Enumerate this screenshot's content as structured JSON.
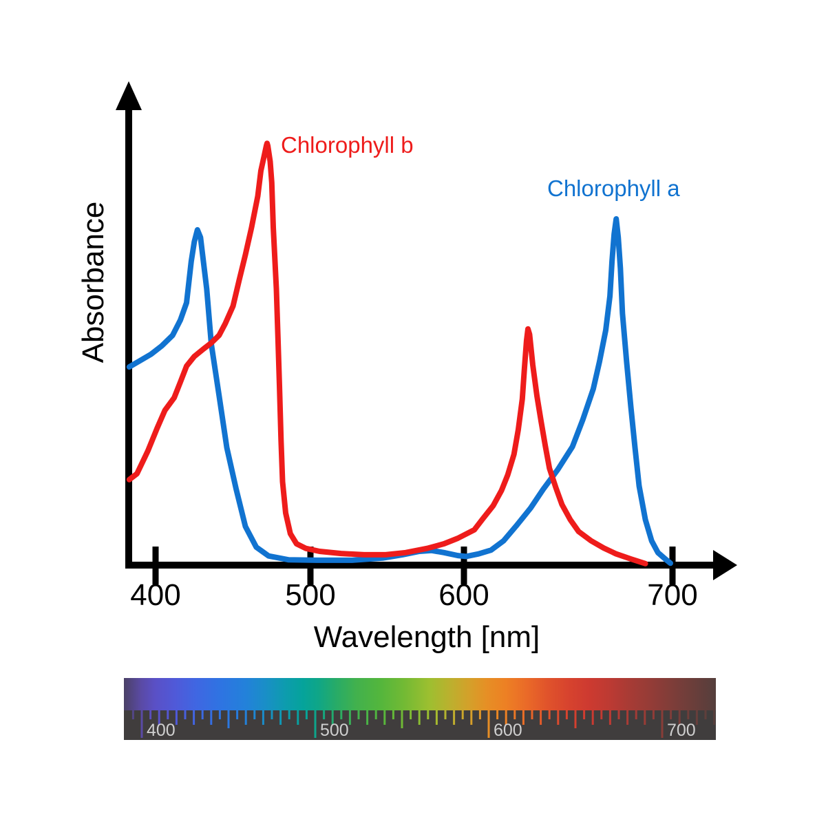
{
  "figure": {
    "y_axis_label": "Absorbance",
    "x_axis_label": "Wavelength [nm]"
  },
  "colors": {
    "chlorophyll_a": "#1173d0",
    "chlorophyll_b": "#ee1c1b",
    "axis": "#000000",
    "bar_background": "#403d3d",
    "bar_label": "#cfcfcf"
  },
  "chart_data": {
    "type": "line",
    "title": "",
    "xlabel": "Wavelength [nm]",
    "ylabel": "Absorbance",
    "x_ticks_nm": [
      400,
      500,
      600,
      700
    ],
    "x_tick_labels": [
      "400",
      "500",
      "600",
      "700"
    ],
    "x_range_nm": [
      383,
      731
    ],
    "y_range": [
      0,
      1
    ],
    "grid": false,
    "legend": "inline-labels",
    "series": [
      {
        "name": "Chlorophyll b",
        "label": "Chlorophyll b",
        "color_key": "chlorophyll_b",
        "peaks_nm": [
          472,
          631
        ],
        "points": [
          [
            383,
            0.201
          ],
          [
            388,
            0.215
          ],
          [
            395,
            0.269
          ],
          [
            401,
            0.323
          ],
          [
            406,
            0.365
          ],
          [
            412,
            0.395
          ],
          [
            416,
            0.432
          ],
          [
            420,
            0.47
          ],
          [
            425,
            0.493
          ],
          [
            431,
            0.511
          ],
          [
            436,
            0.525
          ],
          [
            441,
            0.543
          ],
          [
            445,
            0.571
          ],
          [
            450,
            0.612
          ],
          [
            454,
            0.674
          ],
          [
            458,
            0.734
          ],
          [
            462,
            0.799
          ],
          [
            466,
            0.873
          ],
          [
            468,
            0.933
          ],
          [
            470,
            0.966
          ],
          [
            471.5,
            0.992
          ],
          [
            472,
            0.998
          ],
          [
            472.5,
            0.992
          ],
          [
            474,
            0.955
          ],
          [
            475,
            0.905
          ],
          [
            476,
            0.799
          ],
          [
            478,
            0.653
          ],
          [
            479,
            0.538
          ],
          [
            480,
            0.424
          ],
          [
            481,
            0.294
          ],
          [
            482,
            0.196
          ],
          [
            484,
            0.122
          ],
          [
            487,
            0.073
          ],
          [
            491,
            0.049
          ],
          [
            497,
            0.038
          ],
          [
            506,
            0.031
          ],
          [
            520,
            0.026
          ],
          [
            535,
            0.023
          ],
          [
            549,
            0.023
          ],
          [
            562,
            0.028
          ],
          [
            576,
            0.038
          ],
          [
            587,
            0.049
          ],
          [
            596,
            0.062
          ],
          [
            605,
            0.082
          ],
          [
            609,
            0.108
          ],
          [
            614,
            0.139
          ],
          [
            618,
            0.175
          ],
          [
            621,
            0.212
          ],
          [
            624,
            0.261
          ],
          [
            626,
            0.318
          ],
          [
            628,
            0.392
          ],
          [
            629,
            0.465
          ],
          [
            630,
            0.53
          ],
          [
            630.7,
            0.558
          ],
          [
            631.5,
            0.545
          ],
          [
            633,
            0.473
          ],
          [
            635,
            0.4
          ],
          [
            637,
            0.339
          ],
          [
            639,
            0.281
          ],
          [
            641,
            0.228
          ],
          [
            644,
            0.183
          ],
          [
            647,
            0.142
          ],
          [
            651,
            0.106
          ],
          [
            655,
            0.078
          ],
          [
            661,
            0.056
          ],
          [
            667,
            0.039
          ],
          [
            673,
            0.025
          ],
          [
            680,
            0.013
          ],
          [
            687,
            0.002
          ]
        ]
      },
      {
        "name": "Chlorophyll a",
        "label": "Chlorophyll a",
        "color_key": "chlorophyll_a",
        "peaks_nm": [
          427,
          673
        ],
        "points": [
          [
            383,
            0.468
          ],
          [
            390,
            0.483
          ],
          [
            397,
            0.498
          ],
          [
            404,
            0.518
          ],
          [
            411,
            0.543
          ],
          [
            416,
            0.579
          ],
          [
            420,
            0.62
          ],
          [
            423,
            0.718
          ],
          [
            425,
            0.765
          ],
          [
            427,
            0.793
          ],
          [
            429,
            0.775
          ],
          [
            430,
            0.745
          ],
          [
            433,
            0.653
          ],
          [
            436,
            0.522
          ],
          [
            441,
            0.4
          ],
          [
            446,
            0.277
          ],
          [
            452,
            0.179
          ],
          [
            458,
            0.09
          ],
          [
            465,
            0.041
          ],
          [
            473,
            0.02
          ],
          [
            486,
            0.011
          ],
          [
            504,
            0.01
          ],
          [
            527,
            0.01
          ],
          [
            547,
            0.015
          ],
          [
            560,
            0.023
          ],
          [
            571,
            0.031
          ],
          [
            579,
            0.033
          ],
          [
            587,
            0.028
          ],
          [
            596,
            0.021
          ],
          [
            601,
            0.019
          ],
          [
            607,
            0.025
          ],
          [
            613,
            0.034
          ],
          [
            619,
            0.056
          ],
          [
            625,
            0.091
          ],
          [
            632,
            0.134
          ],
          [
            638,
            0.178
          ],
          [
            645,
            0.225
          ],
          [
            652,
            0.279
          ],
          [
            657,
            0.343
          ],
          [
            662,
            0.416
          ],
          [
            665,
            0.481
          ],
          [
            668,
            0.555
          ],
          [
            670,
            0.636
          ],
          [
            671,
            0.718
          ],
          [
            672,
            0.783
          ],
          [
            673,
            0.819
          ],
          [
            674,
            0.775
          ],
          [
            675,
            0.702
          ],
          [
            676,
            0.595
          ],
          [
            678,
            0.481
          ],
          [
            680,
            0.375
          ],
          [
            682,
            0.277
          ],
          [
            684,
            0.186
          ],
          [
            687,
            0.106
          ],
          [
            690,
            0.056
          ],
          [
            693,
            0.028
          ],
          [
            697,
            0.011
          ],
          [
            699,
            0.003
          ]
        ]
      }
    ],
    "spectrum_bar": {
      "min_nm": 390,
      "max_nm": 731,
      "tick_step_nm": 5,
      "labels": [
        {
          "nm": 400,
          "text": "400"
        },
        {
          "nm": 500,
          "text": "500"
        },
        {
          "nm": 600,
          "text": "600"
        },
        {
          "nm": 700,
          "text": "700"
        }
      ],
      "gradient_stops": [
        {
          "nm": 390,
          "color": "#4b4166"
        },
        {
          "nm": 400,
          "color": "#5a4aa5"
        },
        {
          "nm": 408,
          "color": "#5a50c6"
        },
        {
          "nm": 420,
          "color": "#4f5ad9"
        },
        {
          "nm": 432,
          "color": "#3f67e2"
        },
        {
          "nm": 446,
          "color": "#2e74e2"
        },
        {
          "nm": 460,
          "color": "#2381da"
        },
        {
          "nm": 472,
          "color": "#198fc6"
        },
        {
          "nm": 483,
          "color": "#0d9cae"
        },
        {
          "nm": 493,
          "color": "#05a39b"
        },
        {
          "nm": 502,
          "color": "#0fa687"
        },
        {
          "nm": 512,
          "color": "#27ab68"
        },
        {
          "nm": 524,
          "color": "#42b14d"
        },
        {
          "nm": 538,
          "color": "#54b63c"
        },
        {
          "nm": 552,
          "color": "#74ba34"
        },
        {
          "nm": 566,
          "color": "#9dbf30"
        },
        {
          "nm": 578,
          "color": "#bcb02e"
        },
        {
          "nm": 589,
          "color": "#d4a02a"
        },
        {
          "nm": 599,
          "color": "#e68f25"
        },
        {
          "nm": 610,
          "color": "#ed8024"
        },
        {
          "nm": 622,
          "color": "#ea6a28"
        },
        {
          "nm": 634,
          "color": "#e0532b"
        },
        {
          "nm": 646,
          "color": "#d7432e"
        },
        {
          "nm": 658,
          "color": "#cd3a30"
        },
        {
          "nm": 670,
          "color": "#bc3a33"
        },
        {
          "nm": 682,
          "color": "#a63b35"
        },
        {
          "nm": 694,
          "color": "#933c37"
        },
        {
          "nm": 706,
          "color": "#7e3d39"
        },
        {
          "nm": 731,
          "color": "#553f3c"
        }
      ]
    }
  }
}
